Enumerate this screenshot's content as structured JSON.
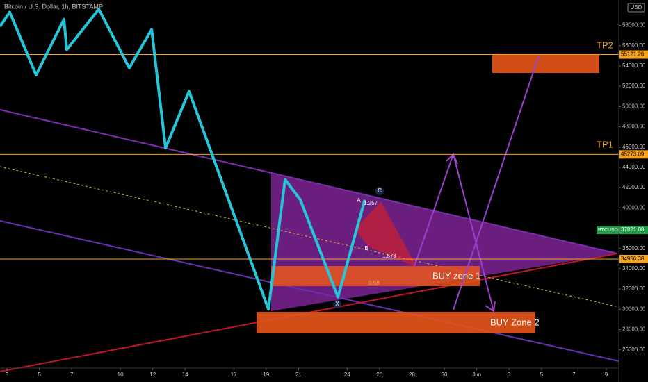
{
  "chart_data": {
    "type": "line",
    "title": "Bitcoin / U.S. Dollar, 1h, BITSTAMP",
    "currency": "USD",
    "x": [
      2.57,
      3.17,
      4.8,
      6.52,
      6.69,
      8.67,
      10.55,
      11.93,
      12.79,
      14.24,
      19.14,
      20.17,
      21.11,
      23.43,
      25.09
    ],
    "values": [
      57900,
      59300,
      53100,
      58600,
      55600,
      59600,
      53800,
      57600,
      45900,
      51500,
      30000,
      42800,
      40800,
      31200,
      40800
    ],
    "color": "#26c6da",
    "xlim": [
      2.57,
      40.77
    ],
    "xticks": [
      3,
      5,
      7,
      10,
      12,
      14,
      17,
      19,
      21,
      24,
      26,
      28,
      30,
      {
        "value": 32,
        "label": "Jun"
      },
      {
        "value": 34,
        "label": "3"
      },
      {
        "value": 36,
        "label": "5"
      },
      {
        "value": 38,
        "label": "7"
      },
      {
        "value": 40,
        "label": "9"
      }
    ],
    "ylim": [
      24200,
      60500
    ],
    "yticks": [
      {
        "value": 26000,
        "label": "26000.00"
      },
      {
        "value": 28000,
        "label": "28000.00"
      },
      {
        "value": 30000,
        "label": "30000.00"
      },
      {
        "value": 32000,
        "label": "32000.00"
      },
      {
        "value": 34000,
        "label": "34000.00"
      },
      {
        "value": 36000,
        "label": "36000.00"
      },
      {
        "value": 40000,
        "label": "40000.00"
      },
      {
        "value": 42000,
        "label": "42000.00"
      },
      {
        "value": 44000,
        "label": "44000.00"
      },
      {
        "value": 46000,
        "label": "46000.00"
      },
      {
        "value": 48000,
        "label": "48000.00"
      },
      {
        "value": 50000,
        "label": "50000.00"
      },
      {
        "value": 52000,
        "label": "52000.00"
      },
      {
        "value": 54000,
        "label": "54000.00"
      },
      {
        "value": 56000,
        "label": "56000.00"
      },
      {
        "value": 58000,
        "label": "58000.00"
      }
    ],
    "price_levels": [
      55121.26,
      45273.09,
      34956.38
    ],
    "level_color": "#f7a21b",
    "last_price": {
      "symbol": "BTCUSD",
      "value": 37821.08,
      "color": "#1e9e4a"
    },
    "annotations": {
      "tp2": "TP2",
      "tp1": "TP1",
      "buy_zone_1": "BUY zone 1",
      "buy_zone_2": "BUY Zone 2",
      "x_point": "X",
      "a_point": "A",
      "b_point": "B",
      "c_point": "C",
      "ratio_ab": "1.257",
      "ratio_bc": "1.573",
      "ratio_xa": "0.68"
    }
  }
}
